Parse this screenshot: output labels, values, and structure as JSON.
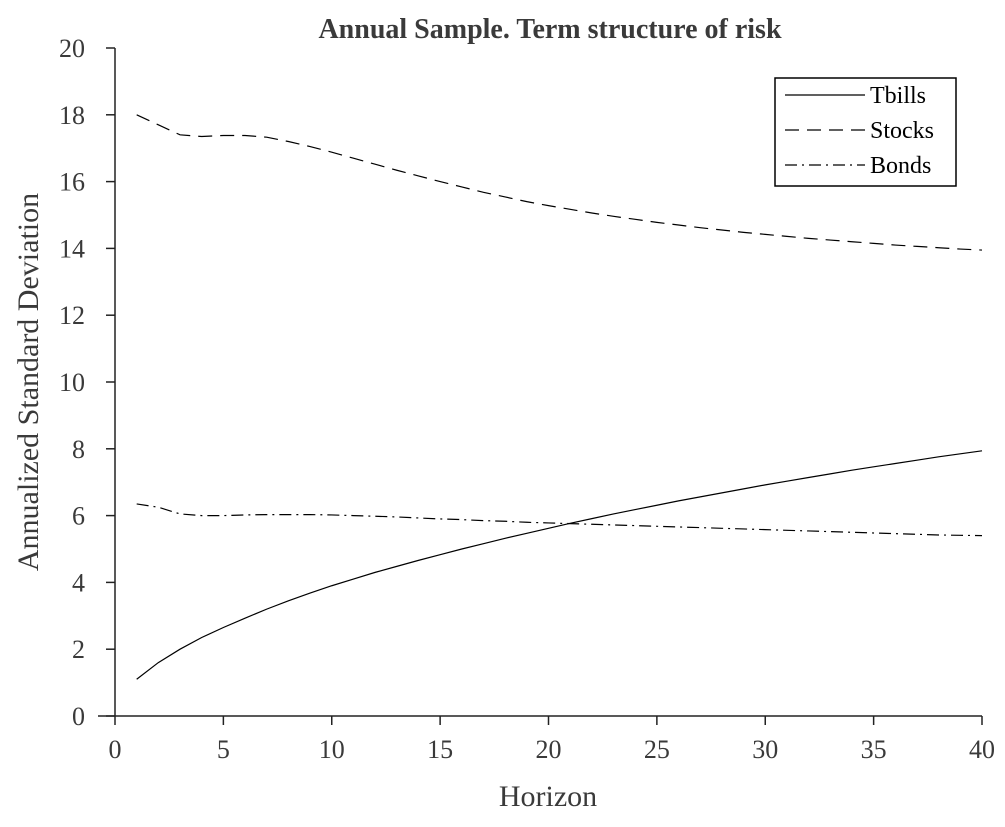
{
  "chart_data": {
    "type": "line",
    "title": "Annual Sample. Term structure of risk",
    "xlabel": "Horizon",
    "ylabel": "Annualized Standard Deviation",
    "xlim": [
      0,
      40
    ],
    "ylim": [
      0,
      20
    ],
    "xticks": [
      0,
      5,
      10,
      15,
      20,
      25,
      30,
      35,
      40
    ],
    "yticks": [
      0,
      2,
      4,
      6,
      8,
      10,
      12,
      14,
      16,
      18,
      20
    ],
    "grid": false,
    "legend_position": "top-right",
    "x": [
      1,
      2,
      3,
      4,
      5,
      6,
      7,
      8,
      9,
      10,
      11,
      12,
      13,
      14,
      15,
      16,
      17,
      18,
      19,
      20,
      21,
      22,
      23,
      24,
      25,
      26,
      27,
      28,
      29,
      30,
      31,
      32,
      33,
      34,
      35,
      36,
      37,
      38,
      39,
      40
    ],
    "series": [
      {
        "name": "Tbills",
        "style": "solid",
        "values": [
          1.1,
          1.6,
          2.0,
          2.35,
          2.65,
          2.93,
          3.2,
          3.45,
          3.68,
          3.9,
          4.1,
          4.3,
          4.48,
          4.66,
          4.83,
          5.0,
          5.16,
          5.32,
          5.47,
          5.62,
          5.77,
          5.91,
          6.05,
          6.18,
          6.31,
          6.44,
          6.56,
          6.68,
          6.8,
          6.92,
          7.03,
          7.14,
          7.25,
          7.36,
          7.46,
          7.56,
          7.66,
          7.76,
          7.85,
          7.94
        ]
      },
      {
        "name": "Stocks",
        "style": "dashed",
        "values": [
          18.0,
          17.7,
          17.4,
          17.35,
          17.38,
          17.38,
          17.33,
          17.2,
          17.05,
          16.88,
          16.7,
          16.52,
          16.34,
          16.17,
          16.0,
          15.84,
          15.68,
          15.54,
          15.4,
          15.28,
          15.17,
          15.06,
          14.96,
          14.87,
          14.78,
          14.7,
          14.62,
          14.55,
          14.48,
          14.42,
          14.36,
          14.3,
          14.25,
          14.2,
          14.15,
          14.1,
          14.06,
          14.02,
          13.98,
          13.95
        ]
      },
      {
        "name": "Bonds",
        "style": "dashdot",
        "values": [
          6.35,
          6.25,
          6.05,
          6.0,
          6.0,
          6.02,
          6.03,
          6.03,
          6.03,
          6.02,
          6.0,
          5.98,
          5.96,
          5.93,
          5.9,
          5.88,
          5.85,
          5.83,
          5.8,
          5.78,
          5.76,
          5.74,
          5.72,
          5.7,
          5.68,
          5.66,
          5.64,
          5.62,
          5.6,
          5.58,
          5.56,
          5.54,
          5.52,
          5.5,
          5.48,
          5.46,
          5.44,
          5.42,
          5.41,
          5.4
        ]
      }
    ]
  }
}
